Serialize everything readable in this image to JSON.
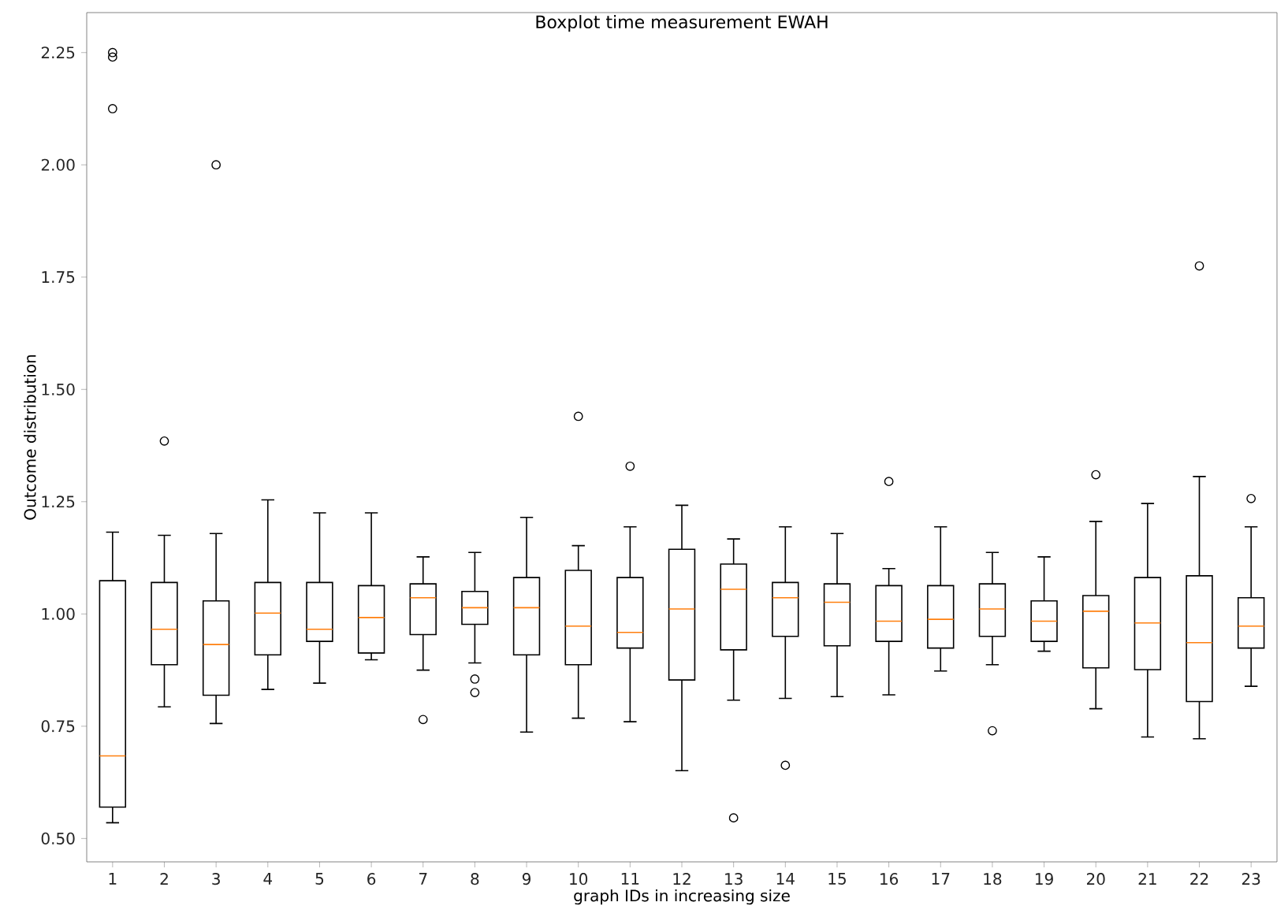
{
  "chart_data": {
    "type": "box",
    "title": "Boxplot time measurement EWAH",
    "xlabel": "graph IDs in increasing size",
    "ylabel": "Outcome distribution",
    "categories": [
      "1",
      "2",
      "3",
      "4",
      "5",
      "6",
      "7",
      "8",
      "9",
      "10",
      "11",
      "12",
      "13",
      "14",
      "15",
      "16",
      "17",
      "18",
      "19",
      "20",
      "21",
      "22",
      "23"
    ],
    "boxes": [
      {
        "low": 0.535,
        "q1": 0.57,
        "median": 0.684,
        "q3": 1.074,
        "high": 1.182,
        "outliers": [
          2.25,
          2.24,
          2.125
        ]
      },
      {
        "low": 0.793,
        "q1": 0.887,
        "median": 0.966,
        "q3": 1.07,
        "high": 1.175,
        "outliers": [
          1.385
        ]
      },
      {
        "low": 0.756,
        "q1": 0.819,
        "median": 0.932,
        "q3": 1.029,
        "high": 1.179,
        "outliers": [
          2.0
        ]
      },
      {
        "low": 0.832,
        "q1": 0.909,
        "median": 1.002,
        "q3": 1.07,
        "high": 1.254
      },
      {
        "low": 0.846,
        "q1": 0.939,
        "median": 0.966,
        "q3": 1.07,
        "high": 1.225
      },
      {
        "low": 0.898,
        "q1": 0.913,
        "median": 0.992,
        "q3": 1.063,
        "high": 1.225
      },
      {
        "low": 0.875,
        "q1": 0.954,
        "median": 1.036,
        "q3": 1.067,
        "high": 1.127,
        "outliers": [
          0.765
        ]
      },
      {
        "low": 0.891,
        "q1": 0.977,
        "median": 1.014,
        "q3": 1.05,
        "high": 1.137,
        "outliers": [
          0.855,
          0.825
        ]
      },
      {
        "low": 0.737,
        "q1": 0.909,
        "median": 1.014,
        "q3": 1.081,
        "high": 1.215
      },
      {
        "low": 0.768,
        "q1": 0.887,
        "median": 0.973,
        "q3": 1.097,
        "high": 1.152,
        "outliers": [
          1.44
        ]
      },
      {
        "low": 0.76,
        "q1": 0.924,
        "median": 0.959,
        "q3": 1.081,
        "high": 1.194,
        "outliers": [
          1.329
        ]
      },
      {
        "low": 0.651,
        "q1": 0.853,
        "median": 1.011,
        "q3": 1.144,
        "high": 1.242
      },
      {
        "low": 0.808,
        "q1": 0.92,
        "median": 1.055,
        "q3": 1.111,
        "high": 1.167,
        "outliers": [
          0.546
        ]
      },
      {
        "low": 0.812,
        "q1": 0.95,
        "median": 1.036,
        "q3": 1.07,
        "high": 1.194,
        "outliers": [
          0.663
        ]
      },
      {
        "low": 0.816,
        "q1": 0.929,
        "median": 1.026,
        "q3": 1.067,
        "high": 1.179
      },
      {
        "low": 0.82,
        "q1": 0.939,
        "median": 0.984,
        "q3": 1.063,
        "high": 1.101,
        "outliers": [
          1.295
        ]
      },
      {
        "low": 0.873,
        "q1": 0.924,
        "median": 0.988,
        "q3": 1.063,
        "high": 1.194
      },
      {
        "low": 0.887,
        "q1": 0.95,
        "median": 1.011,
        "q3": 1.067,
        "high": 1.137,
        "outliers": [
          0.74
        ]
      },
      {
        "low": 0.917,
        "q1": 0.939,
        "median": 0.984,
        "q3": 1.029,
        "high": 1.127
      },
      {
        "low": 0.789,
        "q1": 0.88,
        "median": 1.006,
        "q3": 1.041,
        "high": 1.206,
        "outliers": [
          1.31
        ]
      },
      {
        "low": 0.726,
        "q1": 0.876,
        "median": 0.98,
        "q3": 1.081,
        "high": 1.246
      },
      {
        "low": 0.722,
        "q1": 0.805,
        "median": 0.936,
        "q3": 1.085,
        "high": 1.306,
        "outliers": [
          1.775
        ]
      },
      {
        "low": 0.839,
        "q1": 0.924,
        "median": 0.973,
        "q3": 1.036,
        "high": 1.194,
        "outliers": [
          1.257
        ]
      }
    ],
    "ylim": [
      0.448,
      2.339
    ],
    "yticks": [
      {
        "value": 0.5,
        "label": "0.50"
      },
      {
        "value": 0.75,
        "label": "0.75"
      },
      {
        "value": 1.0,
        "label": "1.00"
      },
      {
        "value": 1.25,
        "label": "1.25"
      },
      {
        "value": 1.5,
        "label": "1.50"
      },
      {
        "value": 1.75,
        "label": "1.75"
      },
      {
        "value": 2.0,
        "label": "2.00"
      },
      {
        "value": 2.25,
        "label": "2.25"
      }
    ]
  }
}
